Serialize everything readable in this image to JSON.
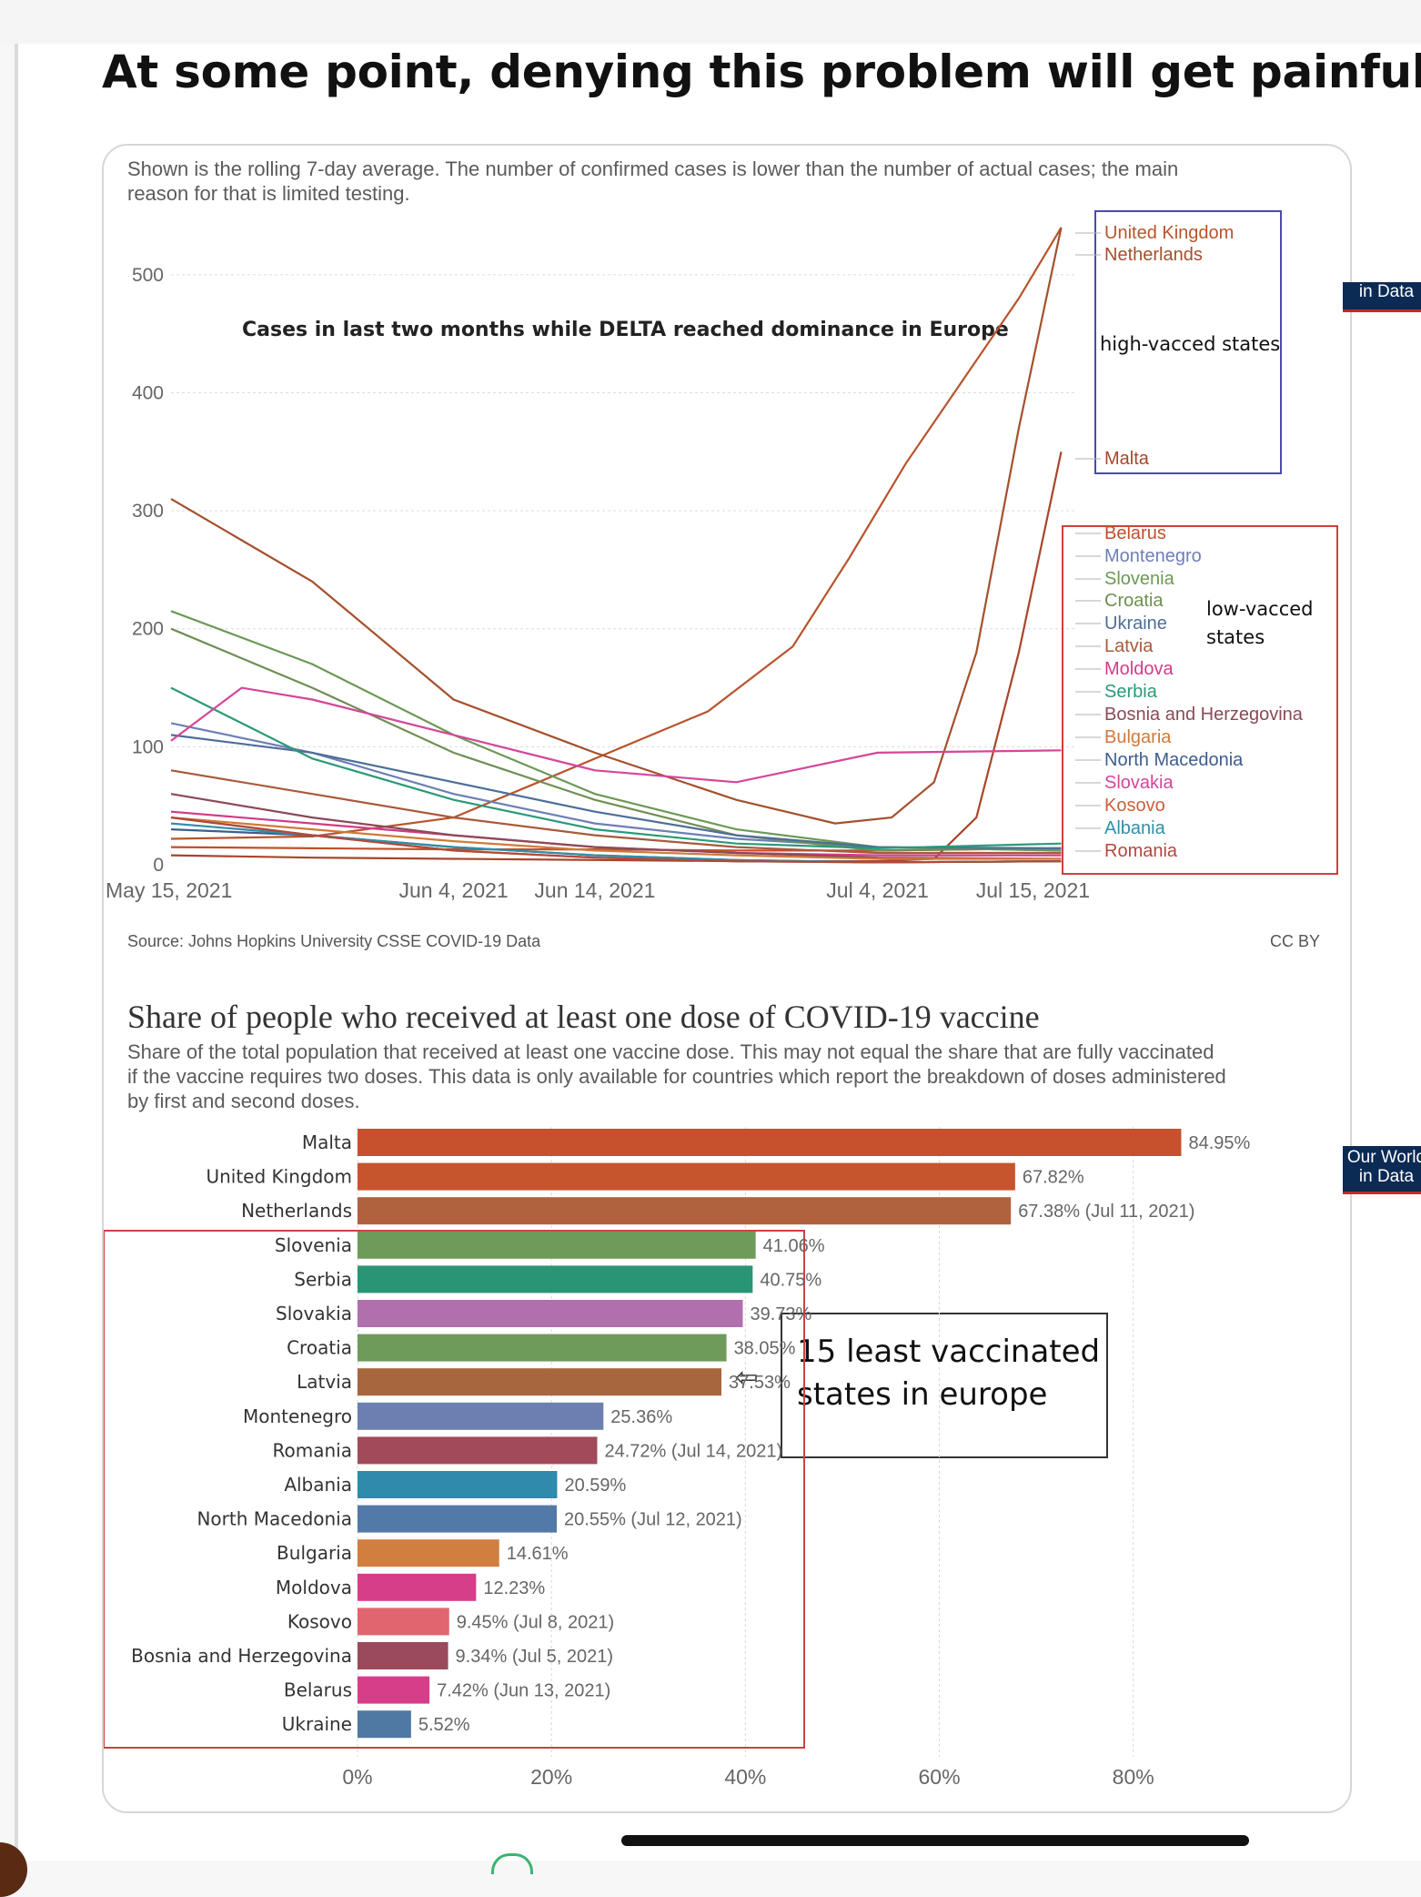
{
  "post": {
    "headline": "At some point, denying this problem will get painful."
  },
  "cases_chart": {
    "subtitle": "Shown is the rolling 7-day average. The number of confirmed cases is lower than the number of actual cases; the main reason for that is limited testing.",
    "annotation": "Cases in last two months while DELTA reached dominance in Europe",
    "logo": "in Data",
    "source": "Source: Johns Hopkins University CSSE COVID-19 Data",
    "license": "CC BY",
    "high_group_label": "high-vacced states",
    "low_group_label_1": "low-vacced",
    "low_group_label_2": "states"
  },
  "vaccine_chart": {
    "title": "Share of people who received at least one dose of COVID-19 vaccine",
    "subtitle": "Share of the total population that received at least one vaccine dose. This may not equal the share that are fully vaccinated if the vaccine requires two doses. This data is only available for countries which report the breakdown of doses administered by first and second doses.",
    "logo_line1": "Our World",
    "logo_line2": "in Data",
    "callout_line1": "15 least vaccinated",
    "callout_line2": "states in europe",
    "arrow_icon": "left-arrow-icon"
  },
  "chart_data": [
    {
      "type": "line",
      "x_ticks": [
        "May 15, 2021",
        "Jun 4, 2021",
        "Jun 14, 2021",
        "Jul 4, 2021",
        "Jul 15, 2021"
      ],
      "x_range": [
        "2021-05-15",
        "2021-07-18"
      ],
      "y_ticks": [
        0,
        100,
        200,
        300,
        400,
        500
      ],
      "ylim": [
        0,
        540
      ],
      "grid": true,
      "legend_position": "right",
      "series": [
        {
          "name": "United Kingdom",
          "color": "#b8542c",
          "x": [
            "2021-05-15",
            "2021-05-25",
            "2021-06-04",
            "2021-06-10",
            "2021-06-16",
            "2021-06-22",
            "2021-06-28",
            "2021-07-02",
            "2021-07-06",
            "2021-07-10",
            "2021-07-14",
            "2021-07-17"
          ],
          "y": [
            22,
            24,
            40,
            70,
            100,
            130,
            185,
            260,
            340,
            410,
            480,
            540
          ]
        },
        {
          "name": "Netherlands",
          "color": "#a4502c",
          "x": [
            "2021-05-15",
            "2021-05-25",
            "2021-06-04",
            "2021-06-14",
            "2021-06-24",
            "2021-07-01",
            "2021-07-05",
            "2021-07-08",
            "2021-07-11",
            "2021-07-14",
            "2021-07-17"
          ],
          "y": [
            310,
            240,
            140,
            95,
            55,
            35,
            40,
            70,
            180,
            370,
            540
          ]
        },
        {
          "name": "Malta",
          "color": "#a8452a",
          "x": [
            "2021-05-15",
            "2021-05-25",
            "2021-06-04",
            "2021-06-14",
            "2021-06-24",
            "2021-07-04",
            "2021-07-08",
            "2021-07-11",
            "2021-07-14",
            "2021-07-17"
          ],
          "y": [
            8,
            6,
            5,
            4,
            3,
            3,
            5,
            40,
            180,
            350
          ]
        },
        {
          "name": "Belarus",
          "color": "#c0502c",
          "x": [
            "2021-05-15",
            "2021-05-25",
            "2021-06-04",
            "2021-06-14",
            "2021-06-24",
            "2021-07-04",
            "2021-07-17"
          ],
          "y": [
            15,
            14,
            13,
            13,
            12,
            12,
            14
          ]
        },
        {
          "name": "Montenegro",
          "color": "#6c7fb6",
          "x": [
            "2021-05-15",
            "2021-05-25",
            "2021-06-04",
            "2021-06-14",
            "2021-06-24",
            "2021-07-04",
            "2021-07-17"
          ],
          "y": [
            120,
            95,
            60,
            35,
            22,
            15,
            12
          ]
        },
        {
          "name": "Slovenia",
          "color": "#6b9a56",
          "x": [
            "2021-05-15",
            "2021-05-25",
            "2021-06-04",
            "2021-06-14",
            "2021-06-24",
            "2021-07-04",
            "2021-07-17"
          ],
          "y": [
            215,
            170,
            110,
            60,
            30,
            15,
            12
          ]
        },
        {
          "name": "Croatia",
          "color": "#6f8f52",
          "x": [
            "2021-05-15",
            "2021-05-25",
            "2021-06-04",
            "2021-06-14",
            "2021-06-24",
            "2021-07-04",
            "2021-07-17"
          ],
          "y": [
            200,
            150,
            95,
            55,
            25,
            12,
            14
          ]
        },
        {
          "name": "Ukraine",
          "color": "#4d6e97",
          "x": [
            "2021-05-15",
            "2021-05-25",
            "2021-06-04",
            "2021-06-14",
            "2021-06-24",
            "2021-07-04",
            "2021-07-17"
          ],
          "y": [
            110,
            95,
            70,
            45,
            25,
            15,
            14
          ]
        },
        {
          "name": "Latvia",
          "color": "#a85a3a",
          "x": [
            "2021-05-15",
            "2021-05-25",
            "2021-06-04",
            "2021-06-14",
            "2021-06-24",
            "2021-07-04",
            "2021-07-17"
          ],
          "y": [
            80,
            60,
            40,
            25,
            15,
            10,
            10
          ]
        },
        {
          "name": "Moldova",
          "color": "#d13b8a",
          "x": [
            "2021-05-15",
            "2021-05-25",
            "2021-06-04",
            "2021-06-14",
            "2021-06-24",
            "2021-07-04",
            "2021-07-17"
          ],
          "y": [
            45,
            35,
            25,
            15,
            10,
            8,
            8
          ]
        },
        {
          "name": "Serbia",
          "color": "#2a9a78",
          "x": [
            "2021-05-15",
            "2021-05-25",
            "2021-06-04",
            "2021-06-14",
            "2021-06-24",
            "2021-07-04",
            "2021-07-17"
          ],
          "y": [
            150,
            90,
            55,
            30,
            18,
            14,
            18
          ]
        },
        {
          "name": "Bosnia and Herzegovina",
          "color": "#8b4a56",
          "x": [
            "2021-05-15",
            "2021-05-25",
            "2021-06-04",
            "2021-06-14",
            "2021-06-24",
            "2021-07-04",
            "2021-07-17"
          ],
          "y": [
            60,
            40,
            25,
            15,
            10,
            6,
            5
          ]
        },
        {
          "name": "Bulgaria",
          "color": "#d07a3a",
          "x": [
            "2021-05-15",
            "2021-05-25",
            "2021-06-04",
            "2021-06-14",
            "2021-06-24",
            "2021-07-04",
            "2021-07-17"
          ],
          "y": [
            40,
            30,
            20,
            12,
            8,
            5,
            5
          ]
        },
        {
          "name": "North Macedonia",
          "color": "#3d5d8f",
          "x": [
            "2021-05-15",
            "2021-05-25",
            "2021-06-04",
            "2021-06-14",
            "2021-06-24",
            "2021-07-04",
            "2021-07-17"
          ],
          "y": [
            30,
            25,
            15,
            8,
            4,
            2,
            3
          ]
        },
        {
          "name": "Slovakia",
          "color": "#d4469a",
          "x": [
            "2021-05-15",
            "2021-05-20",
            "2021-05-25",
            "2021-06-04",
            "2021-06-14",
            "2021-06-24",
            "2021-07-04",
            "2021-07-17"
          ],
          "y": [
            105,
            150,
            140,
            110,
            80,
            70,
            95,
            97
          ]
        },
        {
          "name": "Kosovo",
          "color": "#c8603c",
          "x": [
            "2021-05-15",
            "2021-05-25",
            "2021-06-04",
            "2021-06-14",
            "2021-06-24",
            "2021-07-04",
            "2021-07-17"
          ],
          "y": [
            40,
            25,
            12,
            6,
            3,
            2,
            3
          ]
        },
        {
          "name": "Albania",
          "color": "#2f8fa8",
          "x": [
            "2021-05-15",
            "2021-05-25",
            "2021-06-04",
            "2021-06-14",
            "2021-06-24",
            "2021-07-04",
            "2021-07-17"
          ],
          "y": [
            35,
            25,
            15,
            8,
            4,
            2,
            3
          ]
        },
        {
          "name": "Romania",
          "color": "#b04a3a",
          "x": [
            "2021-05-15",
            "2021-05-25",
            "2021-06-04",
            "2021-06-14",
            "2021-06-24",
            "2021-07-04",
            "2021-07-17"
          ],
          "y": [
            40,
            25,
            12,
            6,
            3,
            2,
            3
          ]
        }
      ]
    },
    {
      "type": "bar",
      "orientation": "horizontal",
      "xlim": [
        0,
        85
      ],
      "x_ticks": [
        "0%",
        "20%",
        "40%",
        "60%",
        "80%"
      ],
      "x_tick_values": [
        0,
        20,
        40,
        60,
        80
      ],
      "categories": [
        "Malta",
        "United Kingdom",
        "Netherlands",
        "Slovenia",
        "Serbia",
        "Slovakia",
        "Croatia",
        "Latvia",
        "Montenegro",
        "Romania",
        "Albania",
        "North Macedonia",
        "Bulgaria",
        "Moldova",
        "Kosovo",
        "Bosnia and Herzegovina",
        "Belarus",
        "Ukraine"
      ],
      "values": [
        84.95,
        67.82,
        67.38,
        41.06,
        40.75,
        39.73,
        38.05,
        37.53,
        25.36,
        24.72,
        20.59,
        20.55,
        14.61,
        12.23,
        9.45,
        9.34,
        7.42,
        5.52
      ],
      "labels": [
        "84.95%",
        "67.82%",
        "67.38% (Jul 11, 2021)",
        "41.06%",
        "40.75%",
        "39.73%",
        "38.05%",
        "37.53%",
        "25.36%",
        "24.72% (Jul 14, 2021)",
        "20.59%",
        "20.55% (Jul 12, 2021)",
        "14.61%",
        "12.23%",
        "9.45% (Jul 8, 2021)",
        "9.34% (Jul 5, 2021)",
        "7.42% (Jun 13, 2021)",
        "5.52%"
      ],
      "colors": [
        "#c8512d",
        "#c6552e",
        "#b0613e",
        "#6f9b5a",
        "#2a9575",
        "#b16fae",
        "#6f9b5a",
        "#a8663f",
        "#6c7fb0",
        "#a24a5a",
        "#2f8aac",
        "#527aa8",
        "#d07f3f",
        "#d63e8a",
        "#e0656f",
        "#9a4a5a",
        "#d63e8a",
        "#4f78a3"
      ]
    }
  ]
}
